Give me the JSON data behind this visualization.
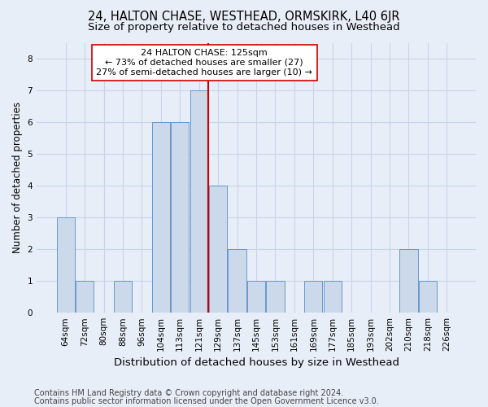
{
  "title": "24, HALTON CHASE, WESTHEAD, ORMSKIRK, L40 6JR",
  "subtitle": "Size of property relative to detached houses in Westhead",
  "xlabel": "Distribution of detached houses by size in Westhead",
  "ylabel": "Number of detached properties",
  "categories": [
    "64sqm",
    "72sqm",
    "80sqm",
    "88sqm",
    "96sqm",
    "104sqm",
    "113sqm",
    "121sqm",
    "129sqm",
    "137sqm",
    "145sqm",
    "153sqm",
    "161sqm",
    "169sqm",
    "177sqm",
    "185sqm",
    "193sqm",
    "202sqm",
    "210sqm",
    "218sqm",
    "226sqm"
  ],
  "values": [
    3,
    1,
    0,
    1,
    0,
    6,
    6,
    7,
    4,
    2,
    1,
    1,
    0,
    1,
    1,
    0,
    0,
    0,
    2,
    1,
    0
  ],
  "bar_color": "#ccd9ea",
  "bar_edgecolor": "#6699cc",
  "highlight_index": 7,
  "highlight_line_color": "#cc0000",
  "annotation_line1": "24 HALTON CHASE: 125sqm",
  "annotation_line2": "← 73% of detached houses are smaller (27)",
  "annotation_line3": "27% of semi-detached houses are larger (10) →",
  "annotation_box_facecolor": "#ffffff",
  "annotation_box_edgecolor": "#cc0000",
  "ylim": [
    0,
    8.5
  ],
  "yticks": [
    0,
    1,
    2,
    3,
    4,
    5,
    6,
    7,
    8
  ],
  "grid_color": "#c8d4e8",
  "background_color": "#e8eef8",
  "footer_line1": "Contains HM Land Registry data © Crown copyright and database right 2024.",
  "footer_line2": "Contains public sector information licensed under the Open Government Licence v3.0.",
  "title_fontsize": 10.5,
  "subtitle_fontsize": 9.5,
  "xlabel_fontsize": 9.5,
  "ylabel_fontsize": 8.5,
  "tick_fontsize": 7.5,
  "annotation_fontsize": 8,
  "footer_fontsize": 7
}
